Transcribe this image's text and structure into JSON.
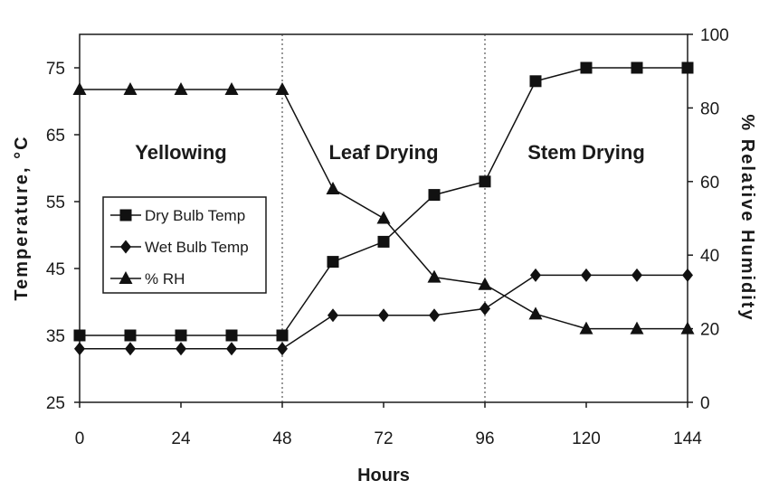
{
  "chart_data": {
    "type": "line",
    "xlabel": "Hours",
    "ylabel": "Temperature, °C",
    "y2label": "% Relative Humidity",
    "x_ticks": [
      0,
      24,
      48,
      72,
      96,
      120,
      144
    ],
    "xlim": [
      0,
      144
    ],
    "y_ticks": [
      25,
      35,
      45,
      55,
      65,
      75
    ],
    "ylim": [
      25,
      80
    ],
    "y2_ticks": [
      0,
      20,
      40,
      60,
      80,
      100
    ],
    "y2lim": [
      0,
      100
    ],
    "grid": false,
    "legend_placement": "middle-left",
    "regions": [
      {
        "label": "Yellowing",
        "x_range": [
          0,
          48
        ]
      },
      {
        "label": "Leaf Drying",
        "x_range": [
          48,
          96
        ]
      },
      {
        "label": "Stem Drying",
        "x_range": [
          96,
          144
        ]
      }
    ],
    "dividers_x": [
      48,
      96
    ],
    "series": [
      {
        "name": "Dry Bulb Temp",
        "axis": "left",
        "marker": "square",
        "x": [
          0,
          12,
          24,
          36,
          48,
          60,
          72,
          84,
          96,
          108,
          120,
          132,
          144
        ],
        "y": [
          35,
          35,
          35,
          35,
          35,
          46,
          49,
          56,
          58,
          73,
          75,
          75,
          75
        ]
      },
      {
        "name": "Wet Bulb Temp",
        "axis": "left",
        "marker": "diamond",
        "x": [
          0,
          12,
          24,
          36,
          48,
          60,
          72,
          84,
          96,
          108,
          120,
          132,
          144
        ],
        "y": [
          33,
          33,
          33,
          33,
          33,
          38,
          38,
          38,
          39,
          44,
          44,
          44,
          44
        ]
      },
      {
        "name": "% RH",
        "axis": "right",
        "marker": "triangle",
        "x": [
          0,
          12,
          24,
          36,
          48,
          60,
          72,
          84,
          96,
          108,
          120,
          132,
          144
        ],
        "y": [
          85,
          85,
          85,
          85,
          85,
          58,
          50,
          34,
          32,
          24,
          20,
          20,
          20
        ]
      }
    ]
  }
}
